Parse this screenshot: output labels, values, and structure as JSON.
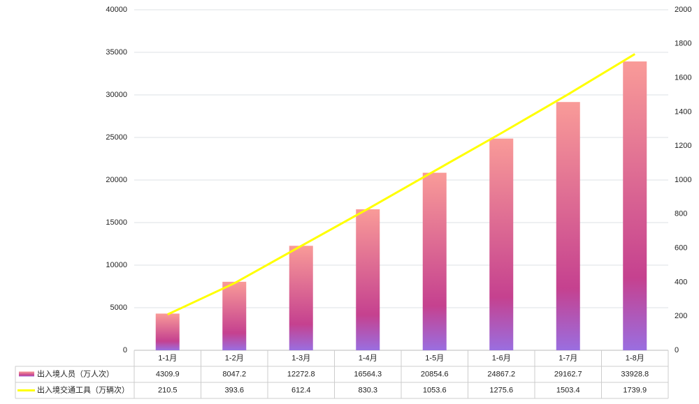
{
  "chart_data": {
    "type": "bar-line",
    "categories": [
      "1-1月",
      "1-2月",
      "1-3月",
      "1-4月",
      "1-5月",
      "1-6月",
      "1-7月",
      "1-8月"
    ],
    "series": [
      {
        "name": "出入境人员（万人次）",
        "type": "bar",
        "colors": [
          "#f99b98",
          "#c5418f",
          "#9a6ee0"
        ],
        "values": [
          4309.9,
          8047.2,
          12272.8,
          16564.3,
          20854.6,
          24867.2,
          29162.7,
          33928.8
        ]
      },
      {
        "name": "出入境交通工具（万辆次）",
        "type": "line",
        "axis": "y2",
        "color": "#ffff00",
        "values": [
          210.5,
          393.6,
          612.4,
          830.3,
          1053.6,
          1275.6,
          1503.4,
          1739.9
        ]
      }
    ],
    "ylim": [
      0,
      40000
    ],
    "yticks": [
      0,
      5000,
      10000,
      15000,
      20000,
      25000,
      30000,
      35000,
      40000
    ],
    "y2lim": [
      0,
      2000
    ],
    "y2ticks": [
      0,
      200,
      400,
      600,
      800,
      1000,
      1200,
      1400,
      1600,
      1800,
      2000
    ],
    "grid": true
  }
}
